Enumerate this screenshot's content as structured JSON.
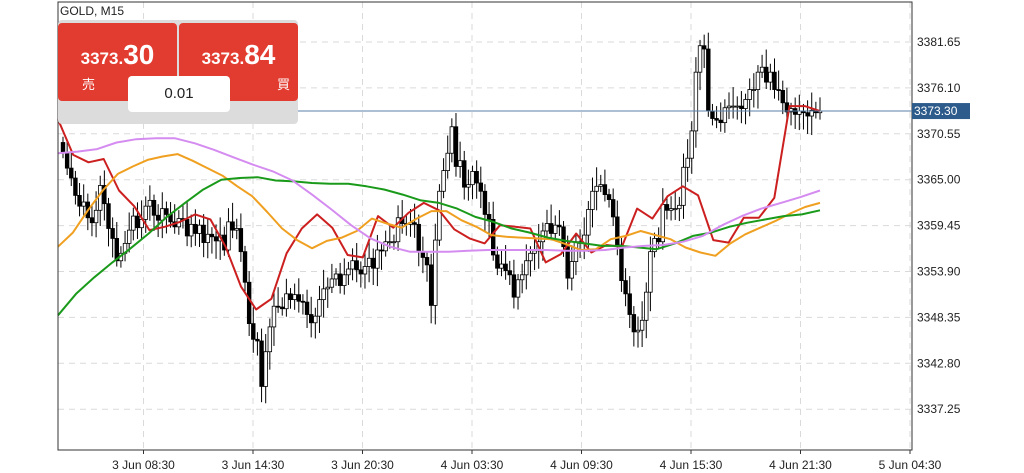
{
  "symbol_label": "GOLD, M15",
  "trade_panel": {
    "sell": {
      "price_prefix": "3373.",
      "price_suffix": "30",
      "label": "売"
    },
    "buy": {
      "price_prefix": "3373.",
      "price_suffix": "84",
      "label": "買"
    },
    "lot_size": "0.01"
  },
  "colors": {
    "candle": "#000000",
    "ma_red": "#cc1f1f",
    "ma_orange": "#f0a020",
    "ma_green": "#1a9a1a",
    "ma_violet": "#d58cf0",
    "current_price_line": "#5b7fa6",
    "current_price_tag": "#2d5b8b",
    "trade_button": "#e23b2f"
  },
  "chart_data": {
    "type": "candlestick",
    "ylim": [
      3332.7,
      3388.6
    ],
    "grid": true,
    "y_ticks": [
      "3381.65",
      "3376.10",
      "3370.55",
      "3365.00",
      "3359.45",
      "3353.90",
      "3348.35",
      "3342.80",
      "3337.25"
    ],
    "x_ticks": [
      "3 Jun 08:30",
      "3 Jun 14:30",
      "3 Jun 20:30",
      "4 Jun 03:30",
      "4 Jun 09:30",
      "4 Jun 15:30",
      "4 Jun 21:30",
      "5 Jun 04:30"
    ],
    "current_price": "3373.30",
    "close_values": [
      3368.3,
      3366.4,
      3365.2,
      3363.1,
      3361.8,
      3362.3,
      3360.4,
      3359.8,
      3361.3,
      3364.3,
      3362.1,
      3359.1,
      3357.9,
      3355.2,
      3356.1,
      3357.3,
      3358.9,
      3360.6,
      3359.2,
      3360.2,
      3361.8,
      3362.5,
      3360.7,
      3360.1,
      3361.5,
      3360.8,
      3359.9,
      3359.3,
      3360.3,
      3360.2,
      3358.2,
      3359.6,
      3358.5,
      3359.5,
      3357.4,
      3358.4,
      3358.1,
      3357.6,
      3358.3,
      3356.5,
      3359.9,
      3358.9,
      3359.1,
      3356.3,
      3352.6,
      3347.6,
      3345.7,
      3345.5,
      3340.0,
      3344.2,
      3347.2,
      3349.7,
      3349.6,
      3349.4,
      3351.2,
      3350.5,
      3351.1,
      3350.3,
      3350.2,
      3348.7,
      3347.7,
      3348.5,
      3350.5,
      3351.8,
      3352.0,
      3353.0,
      3353.6,
      3352.2,
      3353.5,
      3354.2,
      3355.2,
      3354.1,
      3353.6,
      3354.5,
      3355.5,
      3354.3,
      3356.5,
      3356.4,
      3357.5,
      3357.5,
      3357.5,
      3360.4,
      3359.7,
      3359.6,
      3359.8,
      3359.6,
      3356.3,
      3355.6,
      3354.7,
      3349.8,
      3357.7,
      3363.6,
      3366.1,
      3368.2,
      3371.4,
      3366.6,
      3367.3,
      3364.1,
      3364.4,
      3366.0,
      3364.6,
      3363.6,
      3360.8,
      3360.2,
      3355.9,
      3354.3,
      3354.8,
      3354.0,
      3353.5,
      3350.8,
      3352.9,
      3353.5,
      3355.2,
      3356.1,
      3356.4,
      3357.5,
      3358.8,
      3359.7,
      3358.5,
      3359.5,
      3359.3,
      3356.9,
      3353.1,
      3355.1,
      3357.5,
      3357.3,
      3358.3,
      3361.4,
      3363.6,
      3364.2,
      3364.4,
      3363.2,
      3362.6,
      3360.5,
      3357.1,
      3352.8,
      3351.2,
      3348.7,
      3346.6,
      3346.8,
      3348.0,
      3351.4,
      3356.3,
      3357.9,
      3357.5,
      3362.0,
      3361.3,
      3361.5,
      3361.5,
      3361.9,
      3366.5,
      3367.6,
      3370.9,
      3378.0,
      3381.2,
      3380.8,
      3373.3,
      3372.4,
      3372.2,
      3371.9,
      3373.7,
      3373.9,
      3373.9,
      3373.9,
      3373.6,
      3374.7,
      3375.9,
      3375.9,
      3378.0,
      3378.6,
      3376.8,
      3378.0,
      3375.9,
      3375.8,
      3374.3,
      3373.2,
      3373.6,
      3372.9,
      3373.3,
      3373.1,
      3372.7,
      3373.4,
      3373.1,
      3373.3
    ],
    "series": [
      {
        "name": "",
        "color": "red",
        "values": [
          3372.3,
          3368.0,
          3367.1,
          3367.5,
          3363.7,
          3361.8,
          3358.9,
          3359.3,
          3359.9,
          3360.8,
          3360.2,
          3356.9,
          3352.1,
          3349.3,
          3350.6,
          3356.1,
          3359.1,
          3360.8,
          3359.2,
          3355.9,
          3355.6,
          3360.6,
          3359.2,
          3361.0,
          3362.2,
          3361.3,
          3359.0,
          3357.9,
          3357.3,
          3359.5,
          3359.3,
          3359.1,
          3355.0,
          3356.0,
          3358.5,
          3356.2,
          3357.1,
          3356.9,
          3361.5,
          3360.3,
          3363.0,
          3364.2,
          3363.1,
          3357.7,
          3357.4,
          3360.4,
          3360.4,
          3362.8,
          3373.9,
          3373.9,
          3373.3
        ]
      },
      {
        "name": "",
        "color": "orange",
        "values": [
          3356.9,
          3358.6,
          3361.3,
          3363.7,
          3365.7,
          3366.6,
          3367.4,
          3367.8,
          3368.1,
          3367.3,
          3366.4,
          3365.5,
          3364.2,
          3363.0,
          3361.1,
          3359.1,
          3357.7,
          3356.7,
          3357.6,
          3358.0,
          3358.8,
          3360.3,
          3359.7,
          3359.2,
          3360.3,
          3361.2,
          3361.2,
          3360.1,
          3359.3,
          3358.3,
          3358.1,
          3358.0,
          3357.9,
          3357.8,
          3357.2,
          3356.5,
          3356.6,
          3357.8,
          3358.2,
          3358.8,
          3358.3,
          3357.8,
          3356.8,
          3356.2,
          3355.8,
          3357.3,
          3358.4,
          3359.2,
          3360.0,
          3360.9,
          3361.7,
          3362.2
        ]
      },
      {
        "name": "",
        "color": "green",
        "values": [
          3348.6,
          3351.2,
          3353.2,
          3355.0,
          3356.7,
          3358.5,
          3360.5,
          3362.2,
          3363.8,
          3365.0,
          3365.2,
          3365.3,
          3364.9,
          3364.8,
          3364.6,
          3364.5,
          3364.5,
          3364.2,
          3363.8,
          3363.2,
          3362.5,
          3362.2,
          3361.5,
          3360.5,
          3359.9,
          3359.1,
          3358.6,
          3358.0,
          3357.6,
          3357.3,
          3357.0,
          3357.0,
          3356.8,
          3356.6,
          3357.3,
          3358.2,
          3358.6,
          3359.3,
          3359.8,
          3360.2,
          3360.6,
          3360.8,
          3361.3
        ]
      },
      {
        "name": "",
        "color": "violet",
        "values": [
          3368.2,
          3368.4,
          3368.7,
          3369.5,
          3369.9,
          3370.0,
          3370.0,
          3369.4,
          3368.6,
          3367.7,
          3366.8,
          3366.0,
          3364.9,
          3363.2,
          3361.4,
          3359.5,
          3357.9,
          3356.9,
          3356.3,
          3356.3,
          3356.3,
          3356.4,
          3356.5,
          3356.5,
          3356.5,
          3356.5,
          3356.4,
          3356.4,
          3356.5,
          3356.8,
          3357.0,
          3357.1,
          3357.5,
          3358.2,
          3359.5,
          3360.6,
          3361.5,
          3362.2,
          3362.9,
          3363.7
        ]
      }
    ]
  }
}
